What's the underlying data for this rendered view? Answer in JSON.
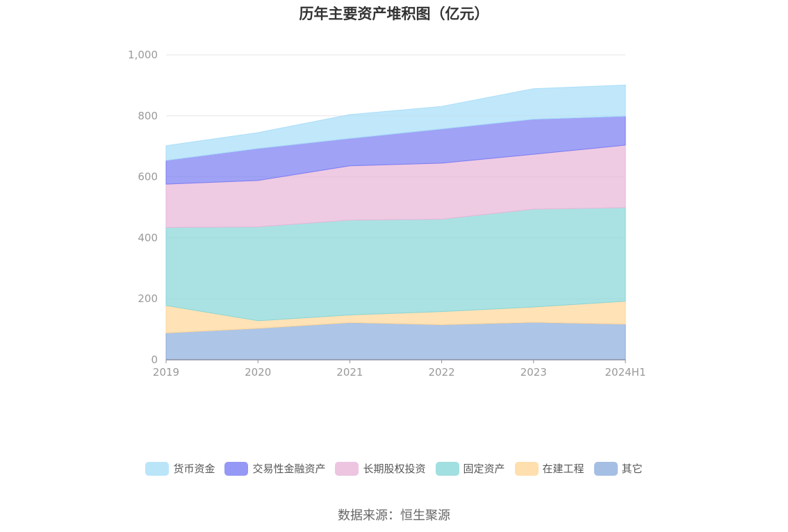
{
  "chart_data": {
    "type": "area",
    "stacked": true,
    "title": "历年主要资产堆积图（亿元）",
    "categories": [
      "2019",
      "2020",
      "2021",
      "2022",
      "2023",
      "2024H1"
    ],
    "ylim": [
      0,
      1000
    ],
    "yticks": [
      0,
      200,
      400,
      600,
      800,
      1000
    ],
    "ytick_labels": [
      "0",
      "200",
      "400",
      "600",
      "800",
      "1,000"
    ],
    "grid": true,
    "legend_position": "bottom",
    "series": [
      {
        "name": "其它",
        "color": "#8eaedc",
        "values": [
          88,
          103,
          122,
          115,
          123,
          117
        ]
      },
      {
        "name": "在建工程",
        "color": "#ffd79a",
        "values": [
          90,
          25,
          25,
          43,
          50,
          75
        ]
      },
      {
        "name": "固定资产",
        "color": "#89d7d8",
        "values": [
          256,
          308,
          311,
          303,
          321,
          307
        ]
      },
      {
        "name": "长期股权投资",
        "color": "#e8b7d8",
        "values": [
          142,
          152,
          178,
          184,
          180,
          205
        ]
      },
      {
        "name": "交易性金融资产",
        "color": "#7b7ef2",
        "values": [
          78,
          105,
          90,
          112,
          115,
          95
        ]
      },
      {
        "name": "货币资金",
        "color": "#a9def8",
        "values": [
          48,
          52,
          78,
          74,
          100,
          102
        ]
      }
    ],
    "legend_order": [
      "货币资金",
      "交易性金融资产",
      "长期股权投资",
      "固定资产",
      "在建工程",
      "其它"
    ]
  },
  "footer": {
    "source": "数据来源：恒生聚源"
  }
}
